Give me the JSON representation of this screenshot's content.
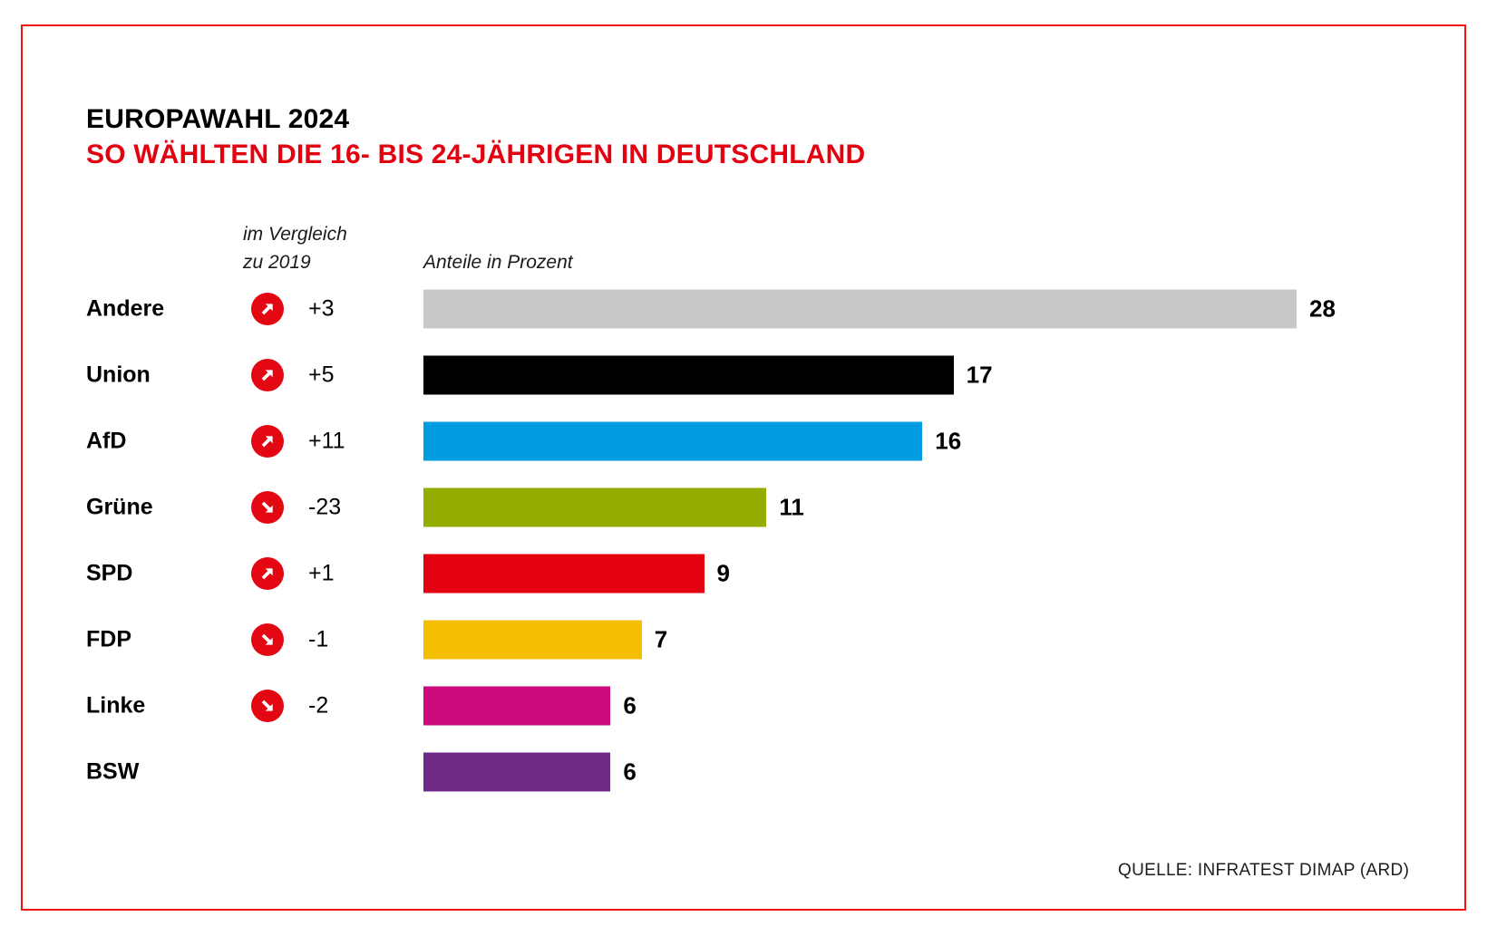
{
  "title": {
    "kicker": "EUROPAWAHL 2024",
    "headline": "SO WÄHLTEN DIE 16- BIS 24-JÄHRIGEN IN DEUTSCHLAND"
  },
  "headers": {
    "comparison_line1": "im Vergleich",
    "comparison_line2": "zu 2019",
    "values": "Anteile in Prozent"
  },
  "source": "QUELLE: INFRATEST DIMAP (ARD)",
  "colors": {
    "frame": "#f01414",
    "headline": "#e3000f",
    "trend_icon_background": "#e30613",
    "trend_icon_arrow": "#ffffff",
    "text": "#000000"
  },
  "chart_data": {
    "type": "bar",
    "orientation": "horizontal",
    "title": "EUROPAWAHL 2024 – SO WÄHLTEN DIE 16- BIS 24-JÄHRIGEN IN DEUTSCHLAND",
    "value_axis_label": "Anteile in Prozent",
    "comparison_label": "im Vergleich zu 2019",
    "xlim": [
      0,
      28
    ],
    "grid": false,
    "legend": false,
    "categories": [
      "Andere",
      "Union",
      "AfD",
      "Grüne",
      "SPD",
      "FDP",
      "Linke",
      "BSW"
    ],
    "values": [
      28,
      17,
      16,
      11,
      9,
      7,
      6,
      6
    ],
    "changes_vs_2019": [
      "+3",
      "+5",
      "+11",
      "-23",
      "+1",
      "-1",
      "-2",
      null
    ],
    "trends": [
      "up",
      "up",
      "up",
      "down",
      "up",
      "down",
      "down",
      null
    ],
    "bar_colors": [
      "#c8c8c8",
      "#000000",
      "#009ee0",
      "#94ab00",
      "#e3000f",
      "#f6be00",
      "#cc0a7d",
      "#6d2b85"
    ],
    "source": "QUELLE: INFRATEST DIMAP (ARD)"
  }
}
